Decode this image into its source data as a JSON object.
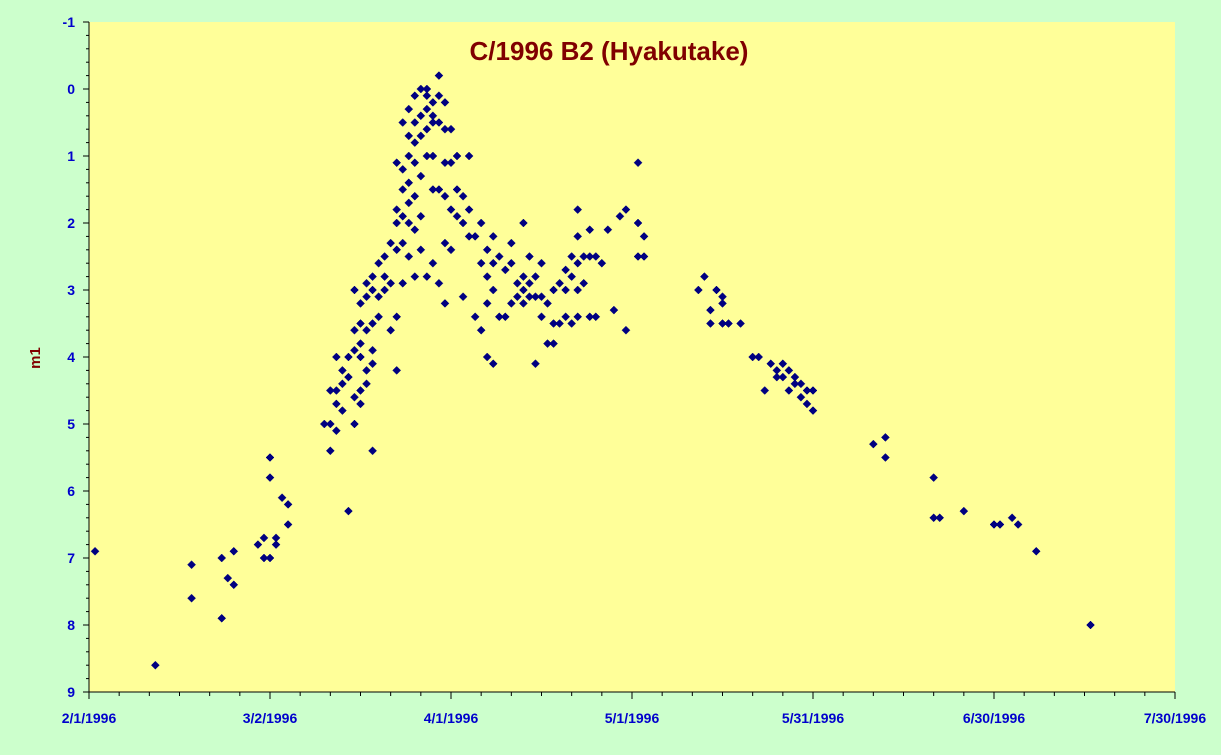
{
  "colors": {
    "background": "#ccffcc",
    "plot_area": "#ffff99",
    "axis": "#000000",
    "tick_label": "#0000cc",
    "title": "#800000",
    "marker": "#000080"
  },
  "chart_data": {
    "type": "scatter",
    "title": "C/1996 B2 (Hyakutake)",
    "xlabel": "",
    "ylabel": "m1",
    "x_axis": {
      "kind": "date",
      "min": "1996-02-01",
      "max": "1996-07-30",
      "tick_labels": [
        "2/1/1996",
        "3/2/1996",
        "4/1/1996",
        "5/1/1996",
        "5/31/1996",
        "6/30/1996",
        "7/30/1996"
      ],
      "minor_ticks": "every 5 days"
    },
    "y_axis": {
      "min": -1,
      "max": 9,
      "reversed": true,
      "tick_labels": [
        "-1",
        "0",
        "1",
        "2",
        "3",
        "4",
        "5",
        "6",
        "7",
        "8",
        "9"
      ],
      "minor_ticks": "every 0.2"
    },
    "grid": false,
    "legend": "none",
    "marker": "diamond",
    "series": [
      {
        "points": [
          [
            "1996-02-02",
            6.9
          ],
          [
            "1996-02-12",
            8.6
          ],
          [
            "1996-02-18",
            7.1
          ],
          [
            "1996-02-18",
            7.6
          ],
          [
            "1996-02-23",
            7.0
          ],
          [
            "1996-02-23",
            7.9
          ],
          [
            "1996-02-24",
            7.3
          ],
          [
            "1996-02-25",
            6.9
          ],
          [
            "1996-02-25",
            7.4
          ],
          [
            "1996-02-29",
            6.8
          ],
          [
            "1996-03-01",
            6.7
          ],
          [
            "1996-03-01",
            7.0
          ],
          [
            "1996-03-02",
            5.5
          ],
          [
            "1996-03-02",
            5.8
          ],
          [
            "1996-03-02",
            7.0
          ],
          [
            "1996-03-03",
            6.7
          ],
          [
            "1996-03-03",
            6.8
          ],
          [
            "1996-03-04",
            6.1
          ],
          [
            "1996-03-05",
            6.2
          ],
          [
            "1996-03-05",
            6.5
          ],
          [
            "1996-03-11",
            5.0
          ],
          [
            "1996-03-12",
            4.5
          ],
          [
            "1996-03-12",
            5.4
          ],
          [
            "1996-03-12",
            5.0
          ],
          [
            "1996-03-13",
            4.0
          ],
          [
            "1996-03-13",
            4.5
          ],
          [
            "1996-03-13",
            5.1
          ],
          [
            "1996-03-13",
            4.7
          ],
          [
            "1996-03-14",
            4.4
          ],
          [
            "1996-03-14",
            4.8
          ],
          [
            "1996-03-14",
            4.2
          ],
          [
            "1996-03-15",
            4.0
          ],
          [
            "1996-03-15",
            6.3
          ],
          [
            "1996-03-15",
            4.3
          ],
          [
            "1996-03-16",
            3.6
          ],
          [
            "1996-03-16",
            3.0
          ],
          [
            "1996-03-16",
            3.9
          ],
          [
            "1996-03-16",
            5.0
          ],
          [
            "1996-03-16",
            4.6
          ],
          [
            "1996-03-17",
            3.2
          ],
          [
            "1996-03-17",
            3.5
          ],
          [
            "1996-03-17",
            4.0
          ],
          [
            "1996-03-17",
            4.5
          ],
          [
            "1996-03-17",
            3.8
          ],
          [
            "1996-03-17",
            4.7
          ],
          [
            "1996-03-18",
            2.9
          ],
          [
            "1996-03-18",
            3.1
          ],
          [
            "1996-03-18",
            3.6
          ],
          [
            "1996-03-18",
            4.2
          ],
          [
            "1996-03-18",
            4.4
          ],
          [
            "1996-03-19",
            2.8
          ],
          [
            "1996-03-19",
            3.0
          ],
          [
            "1996-03-19",
            3.5
          ],
          [
            "1996-03-19",
            3.9
          ],
          [
            "1996-03-19",
            5.4
          ],
          [
            "1996-03-19",
            4.1
          ],
          [
            "1996-03-20",
            2.6
          ],
          [
            "1996-03-20",
            3.1
          ],
          [
            "1996-03-20",
            3.4
          ],
          [
            "1996-03-21",
            2.5
          ],
          [
            "1996-03-21",
            2.8
          ],
          [
            "1996-03-21",
            3.0
          ],
          [
            "1996-03-22",
            2.3
          ],
          [
            "1996-03-22",
            2.9
          ],
          [
            "1996-03-22",
            3.6
          ],
          [
            "1996-03-23",
            1.8
          ],
          [
            "1996-03-23",
            2.0
          ],
          [
            "1996-03-23",
            2.4
          ],
          [
            "1996-03-23",
            3.4
          ],
          [
            "1996-03-23",
            4.2
          ],
          [
            "1996-03-23",
            1.1
          ],
          [
            "1996-03-24",
            1.5
          ],
          [
            "1996-03-24",
            1.9
          ],
          [
            "1996-03-24",
            2.3
          ],
          [
            "1996-03-24",
            2.9
          ],
          [
            "1996-03-24",
            0.5
          ],
          [
            "1996-03-24",
            1.2
          ],
          [
            "1996-03-25",
            0.7
          ],
          [
            "1996-03-25",
            1.0
          ],
          [
            "1996-03-25",
            1.4
          ],
          [
            "1996-03-25",
            1.7
          ],
          [
            "1996-03-25",
            2.0
          ],
          [
            "1996-03-25",
            2.5
          ],
          [
            "1996-03-25",
            0.3
          ],
          [
            "1996-03-26",
            0.5
          ],
          [
            "1996-03-26",
            0.8
          ],
          [
            "1996-03-26",
            1.1
          ],
          [
            "1996-03-26",
            1.6
          ],
          [
            "1996-03-26",
            2.1
          ],
          [
            "1996-03-26",
            2.8
          ],
          [
            "1996-03-26",
            0.1
          ],
          [
            "1996-03-27",
            0.0
          ],
          [
            "1996-03-27",
            0.4
          ],
          [
            "1996-03-27",
            0.7
          ],
          [
            "1996-03-27",
            1.3
          ],
          [
            "1996-03-27",
            1.9
          ],
          [
            "1996-03-27",
            2.4
          ],
          [
            "1996-03-28",
            0.1
          ],
          [
            "1996-03-28",
            0.3
          ],
          [
            "1996-03-28",
            0.6
          ],
          [
            "1996-03-28",
            1.0
          ],
          [
            "1996-03-28",
            2.8
          ],
          [
            "1996-03-28",
            0.0
          ],
          [
            "1996-03-29",
            0.2
          ],
          [
            "1996-03-29",
            0.5
          ],
          [
            "1996-03-29",
            1.0
          ],
          [
            "1996-03-29",
            1.5
          ],
          [
            "1996-03-29",
            2.6
          ],
          [
            "1996-03-29",
            0.4
          ],
          [
            "1996-03-30",
            -0.2
          ],
          [
            "1996-03-30",
            0.1
          ],
          [
            "1996-03-30",
            0.5
          ],
          [
            "1996-03-30",
            1.5
          ],
          [
            "1996-03-30",
            2.9
          ],
          [
            "1996-03-31",
            0.2
          ],
          [
            "1996-03-31",
            0.6
          ],
          [
            "1996-03-31",
            1.1
          ],
          [
            "1996-03-31",
            1.6
          ],
          [
            "1996-03-31",
            2.3
          ],
          [
            "1996-03-31",
            3.2
          ],
          [
            "1996-04-01",
            0.6
          ],
          [
            "1996-04-01",
            1.1
          ],
          [
            "1996-04-01",
            1.8
          ],
          [
            "1996-04-01",
            2.4
          ],
          [
            "1996-04-02",
            1.0
          ],
          [
            "1996-04-02",
            1.5
          ],
          [
            "1996-04-02",
            1.9
          ],
          [
            "1996-04-03",
            1.6
          ],
          [
            "1996-04-03",
            2.0
          ],
          [
            "1996-04-03",
            3.1
          ],
          [
            "1996-04-04",
            1.0
          ],
          [
            "1996-04-04",
            1.8
          ],
          [
            "1996-04-04",
            2.2
          ],
          [
            "1996-04-05",
            2.2
          ],
          [
            "1996-04-05",
            3.4
          ],
          [
            "1996-04-06",
            2.0
          ],
          [
            "1996-04-06",
            2.6
          ],
          [
            "1996-04-06",
            3.6
          ],
          [
            "1996-04-07",
            2.4
          ],
          [
            "1996-04-07",
            2.8
          ],
          [
            "1996-04-07",
            3.2
          ],
          [
            "1996-04-07",
            4.0
          ],
          [
            "1996-04-08",
            2.2
          ],
          [
            "1996-04-08",
            2.6
          ],
          [
            "1996-04-08",
            3.0
          ],
          [
            "1996-04-08",
            4.1
          ],
          [
            "1996-04-09",
            2.5
          ],
          [
            "1996-04-09",
            3.4
          ],
          [
            "1996-04-10",
            2.7
          ],
          [
            "1996-04-10",
            3.4
          ],
          [
            "1996-04-11",
            2.6
          ],
          [
            "1996-04-11",
            3.2
          ],
          [
            "1996-04-11",
            2.3
          ],
          [
            "1996-04-12",
            2.9
          ],
          [
            "1996-04-12",
            3.1
          ],
          [
            "1996-04-13",
            2.0
          ],
          [
            "1996-04-13",
            2.8
          ],
          [
            "1996-04-13",
            3.2
          ],
          [
            "1996-04-13",
            3.0
          ],
          [
            "1996-04-14",
            2.5
          ],
          [
            "1996-04-14",
            3.1
          ],
          [
            "1996-04-14",
            2.9
          ],
          [
            "1996-04-15",
            2.8
          ],
          [
            "1996-04-15",
            3.1
          ],
          [
            "1996-04-15",
            4.1
          ],
          [
            "1996-04-16",
            2.6
          ],
          [
            "1996-04-16",
            3.1
          ],
          [
            "1996-04-16",
            3.4
          ],
          [
            "1996-04-17",
            3.2
          ],
          [
            "1996-04-17",
            3.8
          ],
          [
            "1996-04-18",
            3.0
          ],
          [
            "1996-04-18",
            3.5
          ],
          [
            "1996-04-18",
            3.8
          ],
          [
            "1996-04-19",
            2.9
          ],
          [
            "1996-04-19",
            3.5
          ],
          [
            "1996-04-20",
            2.7
          ],
          [
            "1996-04-20",
            3.0
          ],
          [
            "1996-04-20",
            3.4
          ],
          [
            "1996-04-21",
            2.5
          ],
          [
            "1996-04-21",
            2.8
          ],
          [
            "1996-04-21",
            3.5
          ],
          [
            "1996-04-22",
            1.8
          ],
          [
            "1996-04-22",
            2.2
          ],
          [
            "1996-04-22",
            2.6
          ],
          [
            "1996-04-22",
            3.0
          ],
          [
            "1996-04-22",
            3.4
          ],
          [
            "1996-04-23",
            2.5
          ],
          [
            "1996-04-23",
            2.9
          ],
          [
            "1996-04-24",
            2.1
          ],
          [
            "1996-04-24",
            2.5
          ],
          [
            "1996-04-24",
            3.4
          ],
          [
            "1996-04-25",
            2.5
          ],
          [
            "1996-04-25",
            3.4
          ],
          [
            "1996-04-26",
            2.6
          ],
          [
            "1996-04-27",
            2.1
          ],
          [
            "1996-04-28",
            3.3
          ],
          [
            "1996-04-29",
            1.9
          ],
          [
            "1996-04-30",
            1.8
          ],
          [
            "1996-04-30",
            3.6
          ],
          [
            "1996-05-02",
            1.1
          ],
          [
            "1996-05-02",
            2.0
          ],
          [
            "1996-05-02",
            2.5
          ],
          [
            "1996-05-03",
            2.2
          ],
          [
            "1996-05-03",
            2.5
          ],
          [
            "1996-05-12",
            3.0
          ],
          [
            "1996-05-13",
            2.8
          ],
          [
            "1996-05-14",
            3.3
          ],
          [
            "1996-05-14",
            3.5
          ],
          [
            "1996-05-15",
            3.0
          ],
          [
            "1996-05-16",
            3.1
          ],
          [
            "1996-05-16",
            3.2
          ],
          [
            "1996-05-16",
            3.5
          ],
          [
            "1996-05-17",
            3.5
          ],
          [
            "1996-05-19",
            3.5
          ],
          [
            "1996-05-21",
            4.0
          ],
          [
            "1996-05-22",
            4.0
          ],
          [
            "1996-05-23",
            4.5
          ],
          [
            "1996-05-24",
            4.1
          ],
          [
            "1996-05-25",
            4.2
          ],
          [
            "1996-05-25",
            4.3
          ],
          [
            "1996-05-26",
            4.1
          ],
          [
            "1996-05-26",
            4.3
          ],
          [
            "1996-05-27",
            4.2
          ],
          [
            "1996-05-27",
            4.5
          ],
          [
            "1996-05-28",
            4.3
          ],
          [
            "1996-05-28",
            4.4
          ],
          [
            "1996-05-29",
            4.4
          ],
          [
            "1996-05-29",
            4.6
          ],
          [
            "1996-05-30",
            4.5
          ],
          [
            "1996-05-30",
            4.7
          ],
          [
            "1996-05-31",
            4.5
          ],
          [
            "1996-05-31",
            4.8
          ],
          [
            "1996-06-10",
            5.3
          ],
          [
            "1996-06-12",
            5.2
          ],
          [
            "1996-06-12",
            5.5
          ],
          [
            "1996-06-20",
            5.8
          ],
          [
            "1996-06-20",
            6.4
          ],
          [
            "1996-06-21",
            6.4
          ],
          [
            "1996-06-25",
            6.3
          ],
          [
            "1996-06-30",
            6.5
          ],
          [
            "1996-07-01",
            6.5
          ],
          [
            "1996-07-03",
            6.4
          ],
          [
            "1996-07-04",
            6.5
          ],
          [
            "1996-07-07",
            6.9
          ],
          [
            "1996-07-16",
            8.0
          ]
        ]
      }
    ]
  }
}
